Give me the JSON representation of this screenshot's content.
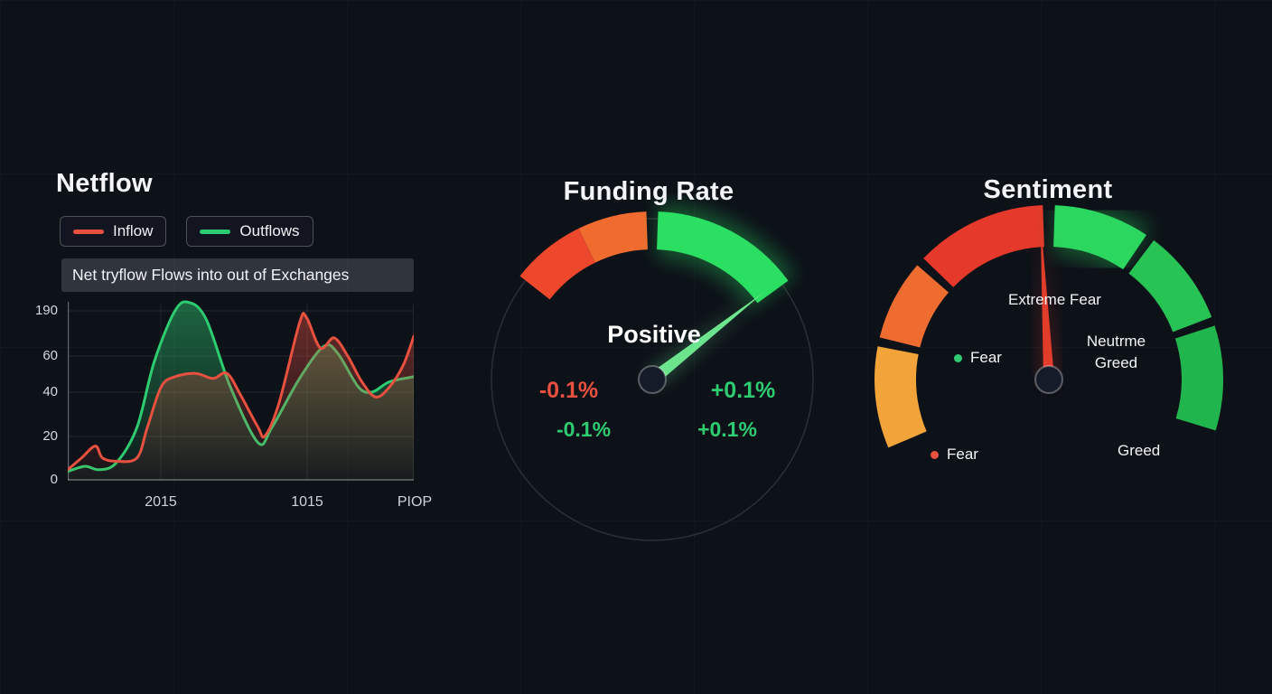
{
  "theme": {
    "background": "#0d1118",
    "red": "#e85040",
    "green": "#2ecc71",
    "grid": "rgba(255,255,255,0.09)"
  },
  "netflow": {
    "title": "Netflow",
    "legend": [
      {
        "label": "Inflow",
        "color": "#e8503f"
      },
      {
        "label": "Outflows",
        "color": "#2ecc71"
      }
    ],
    "tooltip": "Net tryflow Flows into out of Exchanges"
  },
  "funding": {
    "title": "Funding Rate",
    "status": "Positive",
    "left_top": "-0.1%",
    "right_top": "+0.1%",
    "left_bottom": "-0.1%",
    "right_bottom": "+0.1%"
  },
  "sentiment": {
    "title": "Sentiment",
    "extreme_fear": "Extreme Fear",
    "neutral_line1": "Neutrme",
    "neutral_line2": "Greed",
    "fear_mid": "Fear",
    "fear_low": "Fear",
    "greed": "Greed"
  },
  "chart_data": [
    {
      "type": "area",
      "title": "Netflow",
      "subtitle": "Net tryflow Flows into out of Exchanges",
      "x_ticks": [
        "2015",
        "1015",
        "PIOP"
      ],
      "y_ticks": [
        "190",
        "60",
        "40",
        "20",
        "0"
      ],
      "grid": true,
      "legend_position": "top",
      "x_range": [
        0,
        100
      ],
      "y_range": [
        0,
        100
      ],
      "series": [
        {
          "name": "Outflows",
          "color": "#2ecc71",
          "points": [
            [
              0,
              5
            ],
            [
              5,
              8
            ],
            [
              9,
              6
            ],
            [
              14,
              10
            ],
            [
              20,
              31
            ],
            [
              25,
              70
            ],
            [
              31,
              100
            ],
            [
              35,
              105
            ],
            [
              40,
              95
            ],
            [
              47,
              55
            ],
            [
              55,
              22
            ],
            [
              59,
              31
            ],
            [
              67,
              60
            ],
            [
              74,
              79
            ],
            [
              78,
              75
            ],
            [
              84,
              55
            ],
            [
              88,
              52
            ],
            [
              93,
              58
            ],
            [
              100,
              61
            ]
          ]
        },
        {
          "name": "Inflow",
          "color": "#e8503f",
          "points": [
            [
              0,
              6
            ],
            [
              4,
              13
            ],
            [
              8,
              20
            ],
            [
              10,
              13
            ],
            [
              14,
              11
            ],
            [
              20,
              13
            ],
            [
              23,
              31
            ],
            [
              27,
              55
            ],
            [
              31,
              61
            ],
            [
              37,
              63
            ],
            [
              42,
              60
            ],
            [
              46,
              63
            ],
            [
              50,
              50
            ],
            [
              55,
              31
            ],
            [
              57,
              26
            ],
            [
              61,
              45
            ],
            [
              67,
              93
            ],
            [
              69,
              96
            ],
            [
              73,
              78
            ],
            [
              77,
              84
            ],
            [
              81,
              73
            ],
            [
              85,
              58
            ],
            [
              89,
              49
            ],
            [
              93,
              55
            ],
            [
              97,
              68
            ],
            [
              100,
              85
            ]
          ]
        }
      ]
    },
    {
      "type": "gauge",
      "title": "Funding Rate",
      "value_label": "Positive",
      "min_label": "-0.1%",
      "max_label": "+0.1%",
      "needle_angle_deg": 38,
      "needle_color": "#6ce48e",
      "outline_radius": 178,
      "segments": [
        {
          "from": 142,
          "to": 116,
          "color": "#ed472c"
        },
        {
          "from": 116,
          "to": 92,
          "color": "#f06b2e"
        },
        {
          "from": 88,
          "to": 36,
          "color": "#2bdf63",
          "glow": true
        }
      ]
    },
    {
      "type": "gauge",
      "title": "Sentiment",
      "value_label": "Extreme Fear",
      "categories": [
        "Extreme Fear",
        "Fear",
        "Neutrme Greed",
        "Fear",
        "Greed"
      ],
      "needle_angle_deg": 93,
      "needle_color": "#e23c2b",
      "segments": [
        {
          "from": 203,
          "to": 169,
          "color": "#f2a33a"
        },
        {
          "from": 166,
          "to": 139,
          "color": "#ee6c2f"
        },
        {
          "from": 136,
          "to": 92,
          "color": "#e4392b"
        },
        {
          "from": 88,
          "to": 56,
          "color": "#2cd75f",
          "glow": true
        },
        {
          "from": 53,
          "to": 21,
          "color": "#27c355"
        },
        {
          "from": 18,
          "to": -17,
          "color": "#21b64d"
        }
      ]
    }
  ]
}
